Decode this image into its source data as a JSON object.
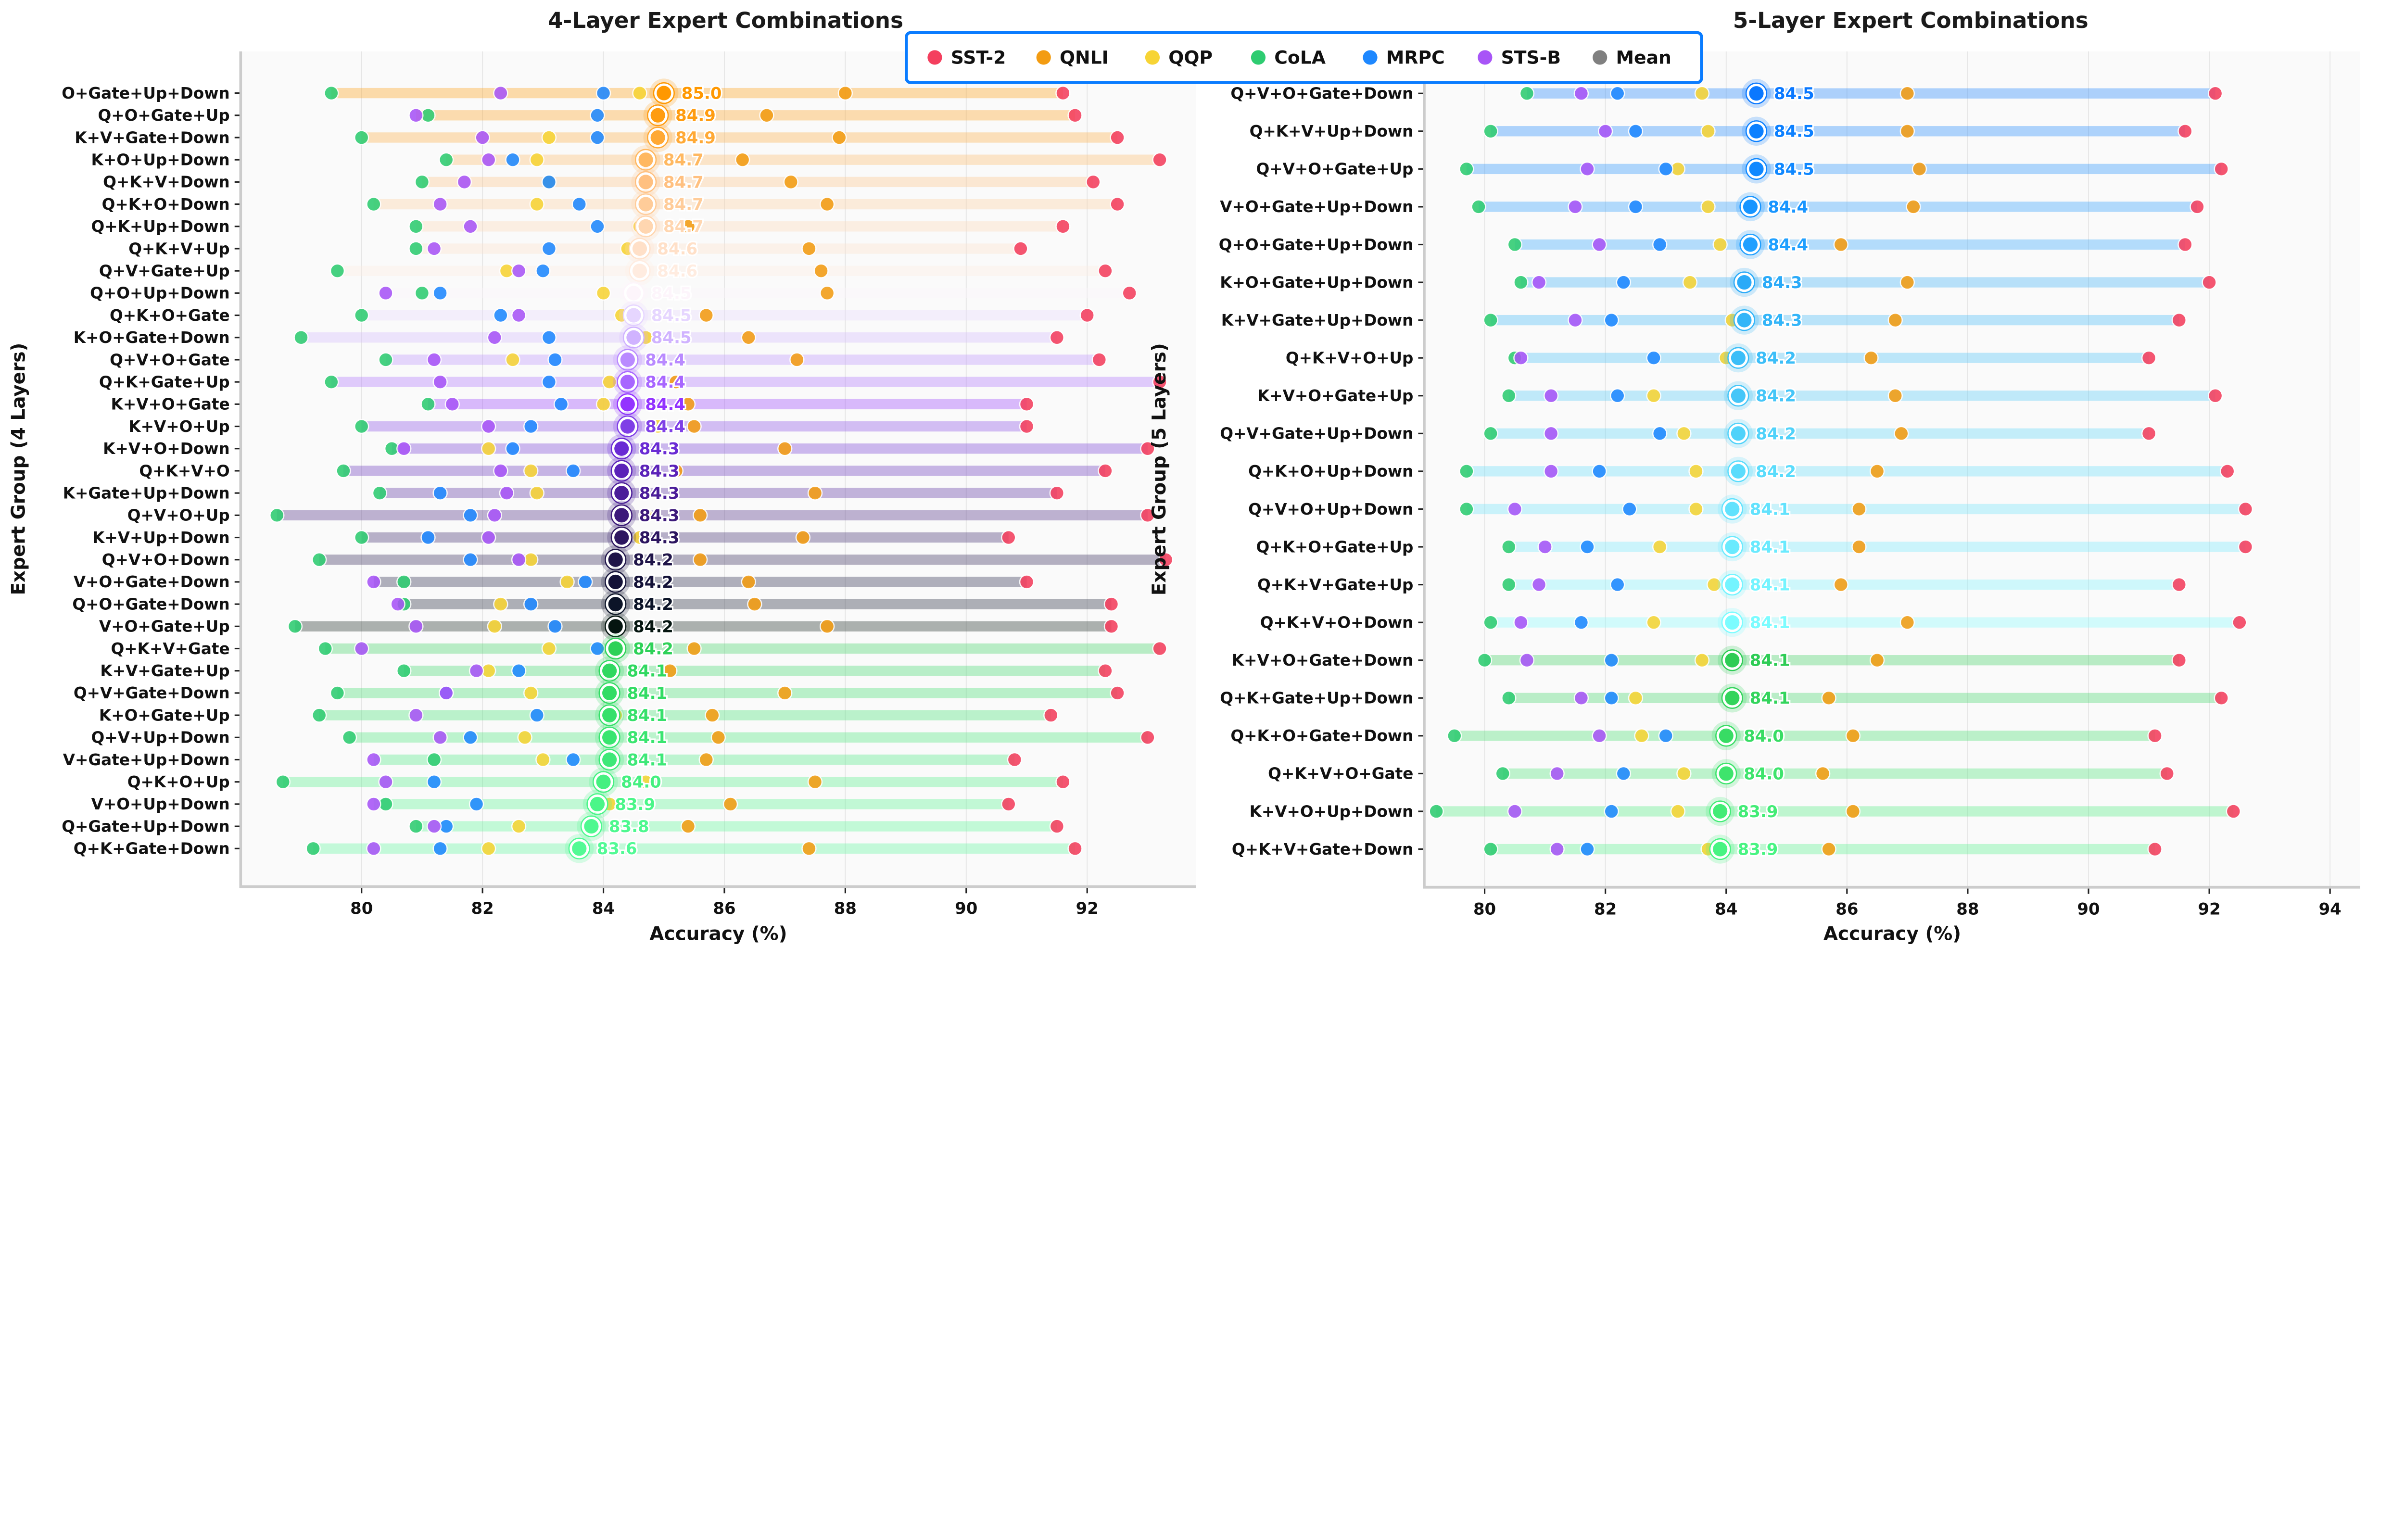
{
  "chart_data": [
    {
      "type": "dot-range",
      "title": "4-Layer Expert Combinations",
      "xlabel": "Accuracy (%)",
      "ylabel": "Expert Group (4 Layers)",
      "xlim": [
        78.0,
        93.8
      ],
      "xticks": [
        80,
        82,
        84,
        86,
        88,
        90,
        92
      ],
      "grid": "vertical",
      "series_order": [
        "SST-2",
        "QNLI",
        "QQP",
        "CoLA",
        "MRPC",
        "STS-B"
      ],
      "rows": [
        {
          "label": "O+Gate+Up+Down",
          "scores": [
            91.6,
            88.0,
            84.6,
            79.5,
            84.0,
            82.3
          ],
          "mean": 85.0,
          "mean_label": "85.0",
          "color": "#ff9800"
        },
        {
          "label": "Q+O+Gate+Up",
          "scores": [
            91.8,
            86.7,
            84.9,
            81.1,
            83.9,
            80.9
          ],
          "mean": 84.9,
          "mean_label": "84.9",
          "color": "#ff9c10"
        },
        {
          "label": "K+V+Gate+Down",
          "scores": [
            92.5,
            87.9,
            83.1,
            80.0,
            83.9,
            82.0
          ],
          "mean": 84.9,
          "mean_label": "84.9",
          "color": "#ffa935"
        },
        {
          "label": "K+O+Up+Down",
          "scores": [
            93.2,
            86.3,
            82.9,
            81.4,
            82.5,
            82.1
          ],
          "mean": 84.7,
          "mean_label": "84.7",
          "color": "#ffb860"
        },
        {
          "label": "Q+K+V+Down",
          "scores": [
            92.1,
            87.1,
            83.1,
            81.0,
            83.1,
            81.7
          ],
          "mean": 84.7,
          "mean_label": "84.7",
          "color": "#ffc080"
        },
        {
          "label": "Q+K+O+Down",
          "scores": [
            92.5,
            87.7,
            82.9,
            80.2,
            83.6,
            81.3
          ],
          "mean": 84.7,
          "mean_label": "84.7",
          "color": "#ffcc99"
        },
        {
          "label": "Q+K+Up+Down",
          "scores": [
            91.6,
            85.4,
            84.6,
            80.9,
            83.9,
            81.8
          ],
          "mean": 84.7,
          "mean_label": "84.7",
          "color": "#ffd6b0"
        },
        {
          "label": "Q+K+V+Up",
          "scores": [
            90.9,
            87.4,
            84.4,
            80.9,
            83.1,
            81.2
          ],
          "mean": 84.6,
          "mean_label": "84.6",
          "color": "#ffe0c8"
        },
        {
          "label": "Q+V+Gate+Up",
          "scores": [
            92.3,
            87.6,
            82.4,
            79.6,
            83.0,
            82.6
          ],
          "mean": 84.6,
          "mean_label": "84.6",
          "color": "#ffece0"
        },
        {
          "label": "Q+O+Up+Down",
          "scores": [
            92.7,
            87.7,
            84.0,
            81.0,
            81.3,
            80.4
          ],
          "mean": 84.5,
          "mean_label": "84.5",
          "color": "#fdf5fb"
        },
        {
          "label": "Q+K+O+Gate",
          "scores": [
            92.0,
            85.7,
            84.3,
            80.0,
            82.3,
            82.6
          ],
          "mean": 84.5,
          "mean_label": "84.5",
          "color": "#e6d6ff"
        },
        {
          "label": "K+O+Gate+Down",
          "scores": [
            91.5,
            86.4,
            84.7,
            79.0,
            83.1,
            82.2
          ],
          "mean": 84.5,
          "mean_label": "84.5",
          "color": "#d0b3ff"
        },
        {
          "label": "Q+V+O+Gate",
          "scores": [
            92.2,
            87.2,
            82.5,
            80.4,
            83.2,
            81.2
          ],
          "mean": 84.4,
          "mean_label": "84.4",
          "color": "#b98aff"
        },
        {
          "label": "Q+K+Gate+Up",
          "scores": [
            93.2,
            85.2,
            84.1,
            79.5,
            83.1,
            81.3
          ],
          "mean": 84.4,
          "mean_label": "84.4",
          "color": "#a866ff"
        },
        {
          "label": "K+V+O+Gate",
          "scores": [
            91.0,
            85.4,
            84.0,
            81.1,
            83.3,
            81.5
          ],
          "mean": 84.4,
          "mean_label": "84.4",
          "color": "#9333ff"
        },
        {
          "label": "K+V+O+Up",
          "scores": [
            91.0,
            85.5,
            84.9,
            80.0,
            82.8,
            82.1
          ],
          "mean": 84.4,
          "mean_label": "84.4",
          "color": "#7f3fe6"
        },
        {
          "label": "K+V+O+Down",
          "scores": [
            93.0,
            87.0,
            82.1,
            80.5,
            82.5,
            80.7
          ],
          "mean": 84.3,
          "mean_label": "84.3",
          "color": "#6a2bd4"
        },
        {
          "label": "Q+K+V+O",
          "scores": [
            92.3,
            85.2,
            82.8,
            79.7,
            83.5,
            82.3
          ],
          "mean": 84.3,
          "mean_label": "84.3",
          "color": "#5b22b8"
        },
        {
          "label": "K+Gate+Up+Down",
          "scores": [
            91.5,
            87.5,
            82.9,
            80.3,
            81.3,
            82.4
          ],
          "mean": 84.3,
          "mean_label": "84.3",
          "color": "#4b1d99"
        },
        {
          "label": "Q+V+O+Up",
          "scores": [
            93.0,
            85.6,
            84.7,
            78.6,
            81.8,
            82.2
          ],
          "mean": 84.3,
          "mean_label": "84.3",
          "color": "#3d1a7a"
        },
        {
          "label": "K+V+Up+Down",
          "scores": [
            90.7,
            87.3,
            84.6,
            80.0,
            81.1,
            82.1
          ],
          "mean": 84.3,
          "mean_label": "84.3",
          "color": "#2d1660"
        },
        {
          "label": "Q+V+O+Down",
          "scores": [
            93.3,
            85.6,
            82.8,
            79.3,
            81.8,
            82.6
          ],
          "mean": 84.2,
          "mean_label": "84.2",
          "color": "#1f1448"
        },
        {
          "label": "V+O+Gate+Down",
          "scores": [
            91.0,
            86.4,
            83.4,
            80.7,
            83.7,
            80.2
          ],
          "mean": 84.2,
          "mean_label": "84.2",
          "color": "#141238"
        },
        {
          "label": "Q+O+Gate+Down",
          "scores": [
            92.4,
            86.5,
            82.3,
            80.7,
            82.8,
            80.6
          ],
          "mean": 84.2,
          "mean_label": "84.2",
          "color": "#0c1428"
        },
        {
          "label": "V+O+Gate+Up",
          "scores": [
            92.4,
            87.7,
            82.2,
            78.9,
            83.2,
            80.9
          ],
          "mean": 84.2,
          "mean_label": "84.2",
          "color": "#051510"
        },
        {
          "label": "Q+K+V+Gate",
          "scores": [
            93.2,
            85.5,
            83.1,
            79.4,
            83.9,
            80.0
          ],
          "mean": 84.2,
          "mean_label": "84.2",
          "color": "#2ed158"
        },
        {
          "label": "K+V+Gate+Up",
          "scores": [
            92.3,
            85.1,
            82.1,
            80.7,
            82.6,
            81.9
          ],
          "mean": 84.1,
          "mean_label": "84.1",
          "color": "#30d860"
        },
        {
          "label": "Q+V+Gate+Down",
          "scores": [
            92.5,
            87.0,
            82.8,
            79.6,
            81.4,
            81.4
          ],
          "mean": 84.1,
          "mean_label": "84.1",
          "color": "#32dc64"
        },
        {
          "label": "K+O+Gate+Up",
          "scores": [
            91.4,
            85.8,
            84.2,
            79.3,
            82.9,
            80.9
          ],
          "mean": 84.1,
          "mean_label": "84.1",
          "color": "#36e06a"
        },
        {
          "label": "Q+V+Up+Down",
          "scores": [
            93.0,
            85.9,
            82.7,
            79.8,
            81.8,
            81.3
          ],
          "mean": 84.1,
          "mean_label": "84.1",
          "color": "#3ae570"
        },
        {
          "label": "V+Gate+Up+Down",
          "scores": [
            90.8,
            85.7,
            83.0,
            81.2,
            83.5,
            80.2
          ],
          "mean": 84.1,
          "mean_label": "84.1",
          "color": "#3ee878"
        },
        {
          "label": "Q+K+O+Up",
          "scores": [
            91.6,
            87.5,
            84.7,
            78.7,
            81.2,
            80.4
          ],
          "mean": 84.0,
          "mean_label": "84.0",
          "color": "#45f080"
        },
        {
          "label": "V+O+Up+Down",
          "scores": [
            90.7,
            86.1,
            84.1,
            80.4,
            81.9,
            80.2
          ],
          "mean": 83.9,
          "mean_label": "83.9",
          "color": "#4af688"
        },
        {
          "label": "Q+Gate+Up+Down",
          "scores": [
            91.5,
            85.4,
            82.6,
            80.9,
            81.4,
            81.2
          ],
          "mean": 83.8,
          "mean_label": "83.8",
          "color": "#4ef88f"
        },
        {
          "label": "Q+K+Gate+Down",
          "scores": [
            91.8,
            87.4,
            82.1,
            79.2,
            81.3,
            80.2
          ],
          "mean": 83.6,
          "mean_label": "83.6",
          "color": "#52fa95"
        }
      ]
    },
    {
      "type": "dot-range",
      "title": "5-Layer Expert Combinations",
      "xlabel": "Accuracy (%)",
      "ylabel": "Expert Group (5 Layers)",
      "xlim": [
        79.0,
        94.5
      ],
      "xticks": [
        80,
        82,
        84,
        86,
        88,
        90,
        92,
        94
      ],
      "grid": "vertical",
      "series_order": [
        "SST-2",
        "QNLI",
        "QQP",
        "CoLA",
        "MRPC",
        "STS-B"
      ],
      "rows": [
        {
          "label": "Q+V+O+Gate+Down",
          "scores": [
            92.1,
            87.0,
            83.6,
            80.7,
            82.2,
            81.6
          ],
          "mean": 84.5,
          "mean_label": "84.5",
          "color": "#0a78ff"
        },
        {
          "label": "Q+K+V+Up+Down",
          "scores": [
            91.6,
            87.0,
            83.7,
            80.1,
            82.5,
            82.0
          ],
          "mean": 84.5,
          "mean_label": "84.5",
          "color": "#0c80ff"
        },
        {
          "label": "Q+V+O+Gate+Up",
          "scores": [
            92.2,
            87.2,
            83.2,
            79.7,
            83.0,
            81.7
          ],
          "mean": 84.5,
          "mean_label": "84.5",
          "color": "#1088ff"
        },
        {
          "label": "V+O+Gate+Up+Down",
          "scores": [
            91.8,
            87.1,
            83.7,
            79.9,
            82.5,
            81.5
          ],
          "mean": 84.4,
          "mean_label": "84.4",
          "color": "#1895ff"
        },
        {
          "label": "Q+O+Gate+Up+Down",
          "scores": [
            91.6,
            85.9,
            83.9,
            80.5,
            82.9,
            81.9
          ],
          "mean": 84.4,
          "mean_label": "84.4",
          "color": "#20a0ff"
        },
        {
          "label": "K+O+Gate+Up+Down",
          "scores": [
            92.0,
            87.0,
            83.4,
            80.6,
            82.3,
            80.9
          ],
          "mean": 84.3,
          "mean_label": "84.3",
          "color": "#2aaaf8"
        },
        {
          "label": "K+V+Gate+Up+Down",
          "scores": [
            91.5,
            86.8,
            84.1,
            80.1,
            82.1,
            81.5
          ],
          "mean": 84.3,
          "mean_label": "84.3",
          "color": "#33b5f8"
        },
        {
          "label": "Q+K+V+O+Up",
          "scores": [
            91.0,
            86.4,
            84.0,
            80.5,
            82.8,
            80.6
          ],
          "mean": 84.2,
          "mean_label": "84.2",
          "color": "#3cbef8"
        },
        {
          "label": "K+V+O+Gate+Up",
          "scores": [
            92.1,
            86.8,
            82.8,
            80.4,
            82.2,
            81.1
          ],
          "mean": 84.2,
          "mean_label": "84.2",
          "color": "#45c6f8"
        },
        {
          "label": "Q+V+Gate+Up+Down",
          "scores": [
            91.0,
            86.9,
            83.3,
            80.1,
            82.9,
            81.1
          ],
          "mean": 84.2,
          "mean_label": "84.2",
          "color": "#50d2fa"
        },
        {
          "label": "Q+K+O+Up+Down",
          "scores": [
            92.3,
            86.5,
            83.5,
            79.7,
            81.9,
            81.1
          ],
          "mean": 84.2,
          "mean_label": "84.2",
          "color": "#5adcfc"
        },
        {
          "label": "Q+V+O+Up+Down",
          "scores": [
            92.6,
            86.2,
            83.5,
            79.7,
            82.4,
            80.5
          ],
          "mean": 84.1,
          "mean_label": "84.1",
          "color": "#62e2fd"
        },
        {
          "label": "Q+K+O+Gate+Up",
          "scores": [
            92.6,
            86.2,
            82.9,
            80.4,
            81.7,
            81.0
          ],
          "mean": 84.1,
          "mean_label": "84.1",
          "color": "#6aeafe"
        },
        {
          "label": "Q+K+V+Gate+Up",
          "scores": [
            91.5,
            85.9,
            83.8,
            80.4,
            82.2,
            80.9
          ],
          "mean": 84.1,
          "mean_label": "84.1",
          "color": "#74f4ff"
        },
        {
          "label": "Q+K+V+O+Down",
          "scores": [
            92.5,
            87.0,
            82.8,
            80.1,
            81.6,
            80.6
          ],
          "mean": 84.1,
          "mean_label": "84.1",
          "color": "#7cfcff"
        },
        {
          "label": "K+V+O+Gate+Down",
          "scores": [
            91.5,
            86.5,
            83.6,
            80.0,
            82.1,
            80.7
          ],
          "mean": 84.1,
          "mean_label": "84.1",
          "color": "#2ecc55"
        },
        {
          "label": "Q+K+Gate+Up+Down",
          "scores": [
            92.2,
            85.7,
            82.5,
            80.4,
            82.1,
            81.6
          ],
          "mean": 84.1,
          "mean_label": "84.1",
          "color": "#33d45c"
        },
        {
          "label": "Q+K+O+Gate+Down",
          "scores": [
            91.1,
            86.1,
            82.6,
            79.5,
            83.0,
            81.9
          ],
          "mean": 84.0,
          "mean_label": "84.0",
          "color": "#38dc64"
        },
        {
          "label": "Q+K+V+O+Gate",
          "scores": [
            91.3,
            85.6,
            83.3,
            80.3,
            82.3,
            81.2
          ],
          "mean": 84.0,
          "mean_label": "84.0",
          "color": "#3ee46c"
        },
        {
          "label": "K+V+O+Up+Down",
          "scores": [
            92.4,
            86.1,
            83.2,
            79.2,
            82.1,
            80.5
          ],
          "mean": 83.9,
          "mean_label": "83.9",
          "color": "#42ec76"
        },
        {
          "label": "Q+K+V+Gate+Down",
          "scores": [
            91.1,
            85.7,
            83.7,
            80.1,
            81.7,
            81.2
          ],
          "mean": 83.9,
          "mean_label": "83.9",
          "color": "#48f482"
        }
      ]
    }
  ],
  "legend": {
    "placement": "top-center",
    "border_color": "#0a7cff",
    "items": [
      {
        "name": "SST-2",
        "color": "#f43f5e"
      },
      {
        "name": "QNLI",
        "color": "#f39c12"
      },
      {
        "name": "QQP",
        "color": "#f7d435"
      },
      {
        "name": "CoLA",
        "color": "#2ecc71"
      },
      {
        "name": "MRPC",
        "color": "#1e88ff"
      },
      {
        "name": "STS-B",
        "color": "#a855f7"
      },
      {
        "name": "Mean",
        "color": "#808080"
      }
    ]
  }
}
